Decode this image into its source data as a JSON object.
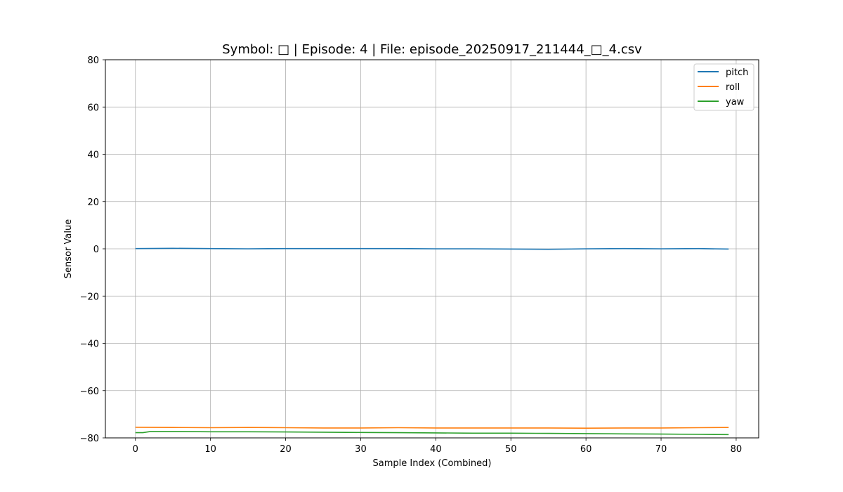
{
  "chart_data": {
    "type": "line",
    "title": "Symbol: □ | Episode: 4 | File: episode_20250917_211444_□_4.csv",
    "xlabel": "Sample Index (Combined)",
    "ylabel": "Sensor Value",
    "xlim": [
      -4,
      83
    ],
    "ylim": [
      -80,
      80
    ],
    "xticks": [
      0,
      10,
      20,
      30,
      40,
      50,
      60,
      70,
      80
    ],
    "yticks": [
      -80,
      -60,
      -40,
      -20,
      0,
      20,
      40,
      60,
      80
    ],
    "grid": true,
    "legend_position": "top-right",
    "series": [
      {
        "name": "pitch",
        "color": "#1f77b4",
        "x": [
          0,
          5,
          10,
          15,
          20,
          25,
          30,
          35,
          40,
          45,
          50,
          55,
          60,
          65,
          70,
          75,
          79
        ],
        "values": [
          0.1,
          0.2,
          0.1,
          0.0,
          0.1,
          0.1,
          0.1,
          0.1,
          0.0,
          0.0,
          -0.1,
          -0.2,
          0.0,
          0.1,
          0.0,
          0.1,
          -0.1
        ]
      },
      {
        "name": "roll",
        "color": "#ff7f0e",
        "x": [
          0,
          5,
          10,
          15,
          20,
          25,
          30,
          35,
          40,
          45,
          50,
          55,
          60,
          65,
          70,
          75,
          79
        ],
        "values": [
          -75.5,
          -75.6,
          -75.7,
          -75.6,
          -75.7,
          -75.8,
          -75.8,
          -75.7,
          -75.8,
          -75.8,
          -75.8,
          -75.8,
          -75.9,
          -75.8,
          -75.8,
          -75.7,
          -75.6
        ]
      },
      {
        "name": "yaw",
        "color": "#2ca02c",
        "x": [
          0,
          1,
          2,
          5,
          10,
          15,
          20,
          25,
          30,
          35,
          40,
          45,
          50,
          55,
          60,
          65,
          70,
          75,
          79
        ],
        "values": [
          -77.8,
          -77.8,
          -77.3,
          -77.3,
          -77.4,
          -77.4,
          -77.5,
          -77.6,
          -77.7,
          -77.8,
          -77.9,
          -78.0,
          -78.0,
          -78.1,
          -78.2,
          -78.3,
          -78.4,
          -78.5,
          -78.6
        ]
      }
    ]
  }
}
